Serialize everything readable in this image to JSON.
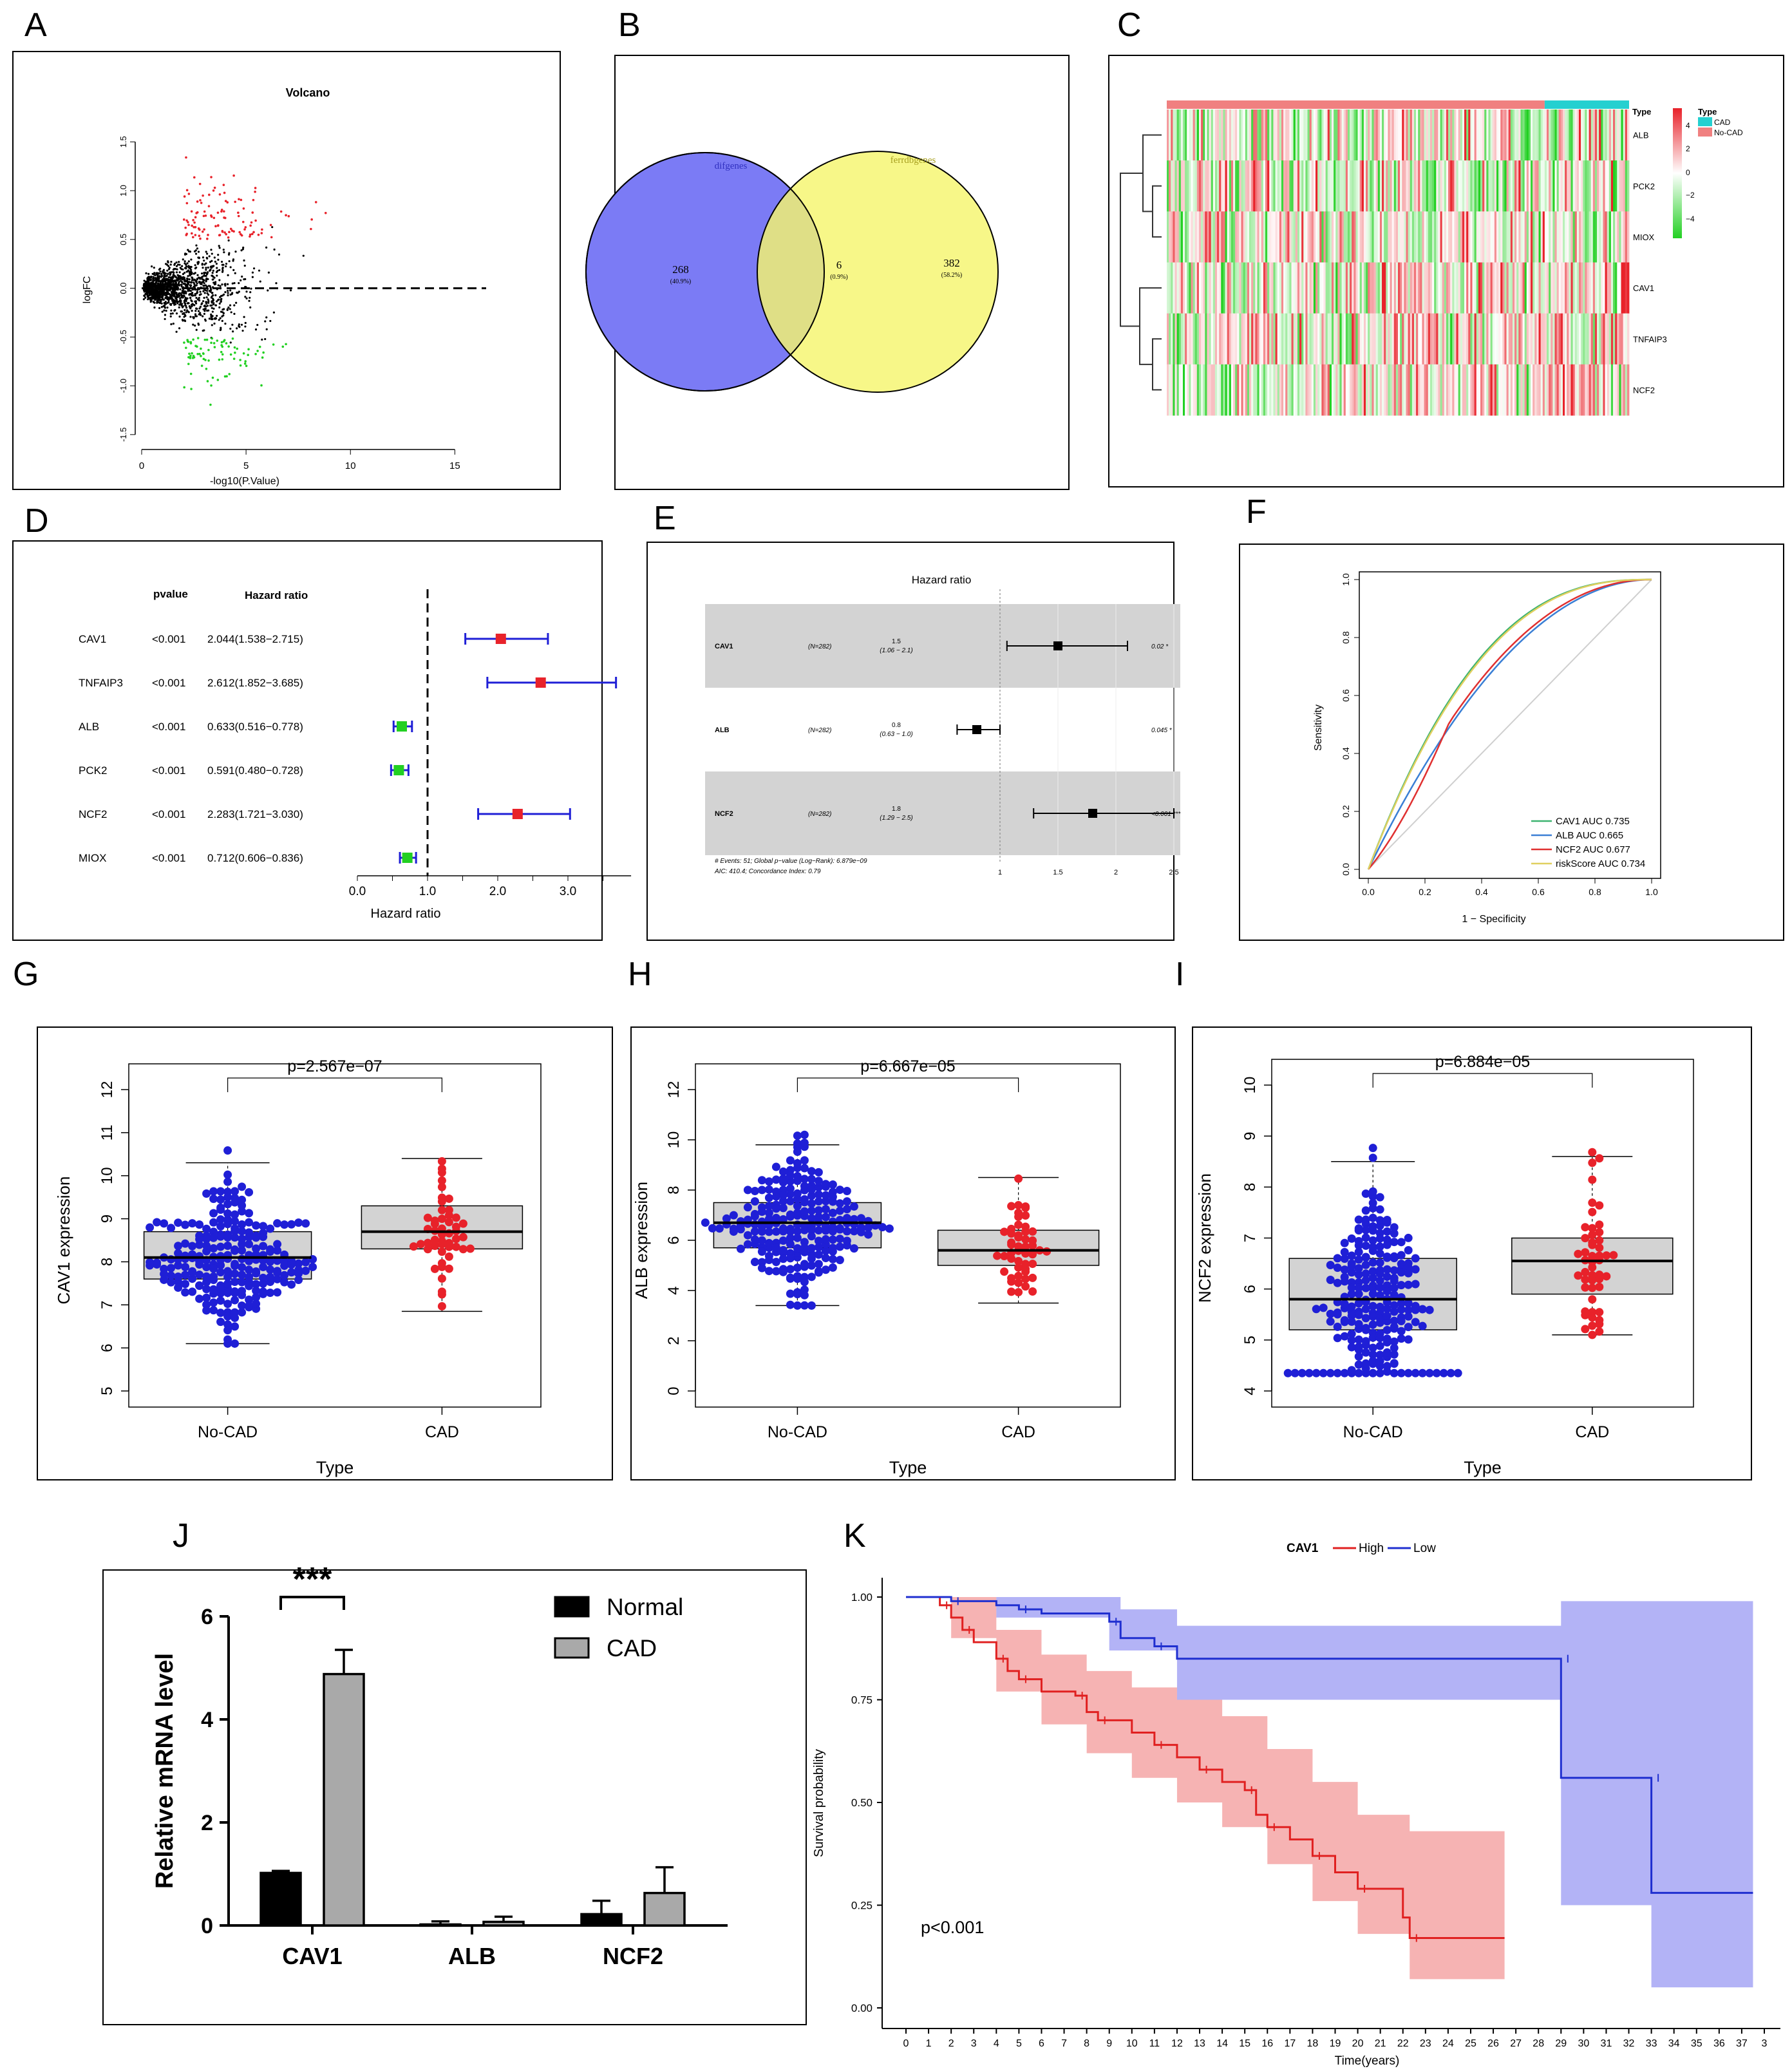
{
  "panels": {
    "A": "A",
    "B": "B",
    "C": "C",
    "D": "D",
    "E": "E",
    "F": "F",
    "G": "G",
    "H": "H",
    "I": "I",
    "J": "J",
    "K": "K"
  },
  "colors": {
    "red": "#e8222a",
    "green": "#22d022",
    "blue": "#1f1fd6",
    "gray": "#c8c8c8",
    "venn_left": "#7b7bf5",
    "venn_right": "#f5f56e",
    "km_high": "#e02020",
    "km_low": "#1f2fd0"
  },
  "chart_data": [
    {
      "id": "A",
      "type": "scatter",
      "title": "Volcano",
      "xlabel": "-log10(P.Value)",
      "ylabel": "logFC",
      "xlim": [
        0,
        16.5
      ],
      "ylim": [
        -1.6,
        1.7
      ],
      "xticks": [
        0,
        5,
        10,
        15
      ],
      "yticks": [
        -1.5,
        -1.0,
        -0.5,
        0.0,
        0.5,
        1.0,
        1.5
      ],
      "threshold_line_y": 0,
      "groups": [
        "up (red)",
        "down (green)",
        "not significant (black)"
      ]
    },
    {
      "id": "B",
      "type": "venn",
      "sets": [
        {
          "name": "difgenes",
          "only": 268,
          "pct": "(40.9%)"
        },
        {
          "name": "ferrdbgenes",
          "only": 382,
          "pct": "(58.2%)"
        }
      ],
      "intersection": {
        "count": 6,
        "pct": "(0.9%)"
      }
    },
    {
      "id": "C",
      "type": "heatmap",
      "rows": [
        "ALB",
        "PCK2",
        "MIOX",
        "CAV1",
        "TNFAIP3",
        "NCF2"
      ],
      "annotation": {
        "title": "Type",
        "levels": [
          "CAD",
          "No-CAD"
        ]
      },
      "scale_title": "Type",
      "scale_ticks": [
        "4",
        "2",
        "0",
        "−2",
        "−4"
      ]
    },
    {
      "id": "D",
      "type": "forest",
      "col_headers": {
        "p": "pvalue",
        "hr": "Hazard ratio"
      },
      "rows": [
        {
          "gene": "CAV1",
          "p": "<0.001",
          "hr_text": "2.044(1.538−2.715)",
          "hr": 2.044,
          "lo": 1.538,
          "hi": 2.715,
          "color": "red"
        },
        {
          "gene": "TNFAIP3",
          "p": "<0.001",
          "hr_text": "2.612(1.852−3.685)",
          "hr": 2.612,
          "lo": 1.852,
          "hi": 3.685,
          "color": "red"
        },
        {
          "gene": "ALB",
          "p": "<0.001",
          "hr_text": "0.633(0.516−0.778)",
          "hr": 0.633,
          "lo": 0.516,
          "hi": 0.778,
          "color": "green"
        },
        {
          "gene": "PCK2",
          "p": "<0.001",
          "hr_text": "0.591(0.480−0.728)",
          "hr": 0.591,
          "lo": 0.48,
          "hi": 0.728,
          "color": "green"
        },
        {
          "gene": "NCF2",
          "p": "<0.001",
          "hr_text": "2.283(1.721−3.030)",
          "hr": 2.283,
          "lo": 1.721,
          "hi": 3.03,
          "color": "red"
        },
        {
          "gene": "MIOX",
          "p": "<0.001",
          "hr_text": "0.712(0.606−0.836)",
          "hr": 0.712,
          "lo": 0.606,
          "hi": 0.836,
          "color": "green"
        }
      ],
      "xticks": [
        "0.0",
        "1.0",
        "2.0",
        "3.0"
      ],
      "xlabel": "Hazard ratio"
    },
    {
      "id": "E",
      "type": "forest",
      "title": "Hazard ratio",
      "rows": [
        {
          "gene": "CAV1",
          "n": "(N=282)",
          "hr": "1.5",
          "ci": "(1.06 − 2.1)",
          "p": "0.02 *",
          "hr_val": 1.5,
          "lo": 1.06,
          "hi": 2.1
        },
        {
          "gene": "ALB",
          "n": "(N=282)",
          "hr": "0.8",
          "ci": "(0.63 − 1.0)",
          "p": "0.045 *",
          "hr_val": 0.8,
          "lo": 0.63,
          "hi": 1.0
        },
        {
          "gene": "NCF2",
          "n": "(N=282)",
          "hr": "1.8",
          "ci": "(1.29 − 2.5)",
          "p": "<0.001 ***",
          "hr_val": 1.8,
          "lo": 1.29,
          "hi": 2.5
        }
      ],
      "footnote1": "# Events: 51; Global p−value (Log−Rank): 6.879e−09",
      "footnote2": "AIC: 410.4; Concordance Index: 0.79",
      "xticks": [
        "1",
        "1.5",
        "2",
        "2.5"
      ]
    },
    {
      "id": "F",
      "type": "line",
      "xlabel": "1 − Specificity",
      "ylabel": "Sensitivity",
      "xlim": [
        0,
        1
      ],
      "ylim": [
        0,
        1
      ],
      "ticks": [
        "0.0",
        "0.2",
        "0.4",
        "0.6",
        "0.8",
        "1.0"
      ],
      "series": [
        {
          "name": "CAV1 AUC 0.735",
          "auc": 0.735,
          "color": "#3cb371"
        },
        {
          "name": "ALB AUC 0.665",
          "auc": 0.665,
          "color": "#3a7fd5"
        },
        {
          "name": "NCF2 AUC 0.677",
          "auc": 0.677,
          "color": "#e03030"
        },
        {
          "name": "riskScore AUC 0.734",
          "auc": 0.734,
          "color": "#e0d060"
        }
      ]
    },
    {
      "id": "G",
      "type": "box",
      "ylabel": "CAV1 expression",
      "xlabel": "Type",
      "pvalue": "p=2.567e−07",
      "categories": [
        "No-CAD",
        "CAD"
      ],
      "ylim": [
        5,
        12
      ],
      "yticks": [
        "5",
        "6",
        "7",
        "8",
        "9",
        "10",
        "11",
        "12"
      ],
      "boxes": [
        {
          "min": 6.1,
          "q1": 7.6,
          "median": 8.1,
          "q3": 8.7,
          "max": 10.3,
          "color": "blue"
        },
        {
          "min": 6.85,
          "q1": 8.3,
          "median": 8.7,
          "q3": 9.3,
          "max": 10.4,
          "color": "red"
        }
      ]
    },
    {
      "id": "H",
      "type": "box",
      "ylabel": "ALB expression",
      "xlabel": "Type",
      "pvalue": "p=6.667e−05",
      "categories": [
        "No-CAD",
        "CAD"
      ],
      "ylim": [
        0,
        12
      ],
      "yticks": [
        "0",
        "2",
        "4",
        "6",
        "8",
        "10",
        "12"
      ],
      "boxes": [
        {
          "min": 3.4,
          "q1": 5.7,
          "median": 6.7,
          "q3": 7.5,
          "max": 9.8,
          "color": "blue"
        },
        {
          "min": 3.5,
          "q1": 5.0,
          "median": 5.6,
          "q3": 6.4,
          "max": 8.5,
          "color": "red"
        }
      ]
    },
    {
      "id": "I",
      "type": "box",
      "ylabel": "NCF2 expression",
      "xlabel": "Type",
      "pvalue": "p=6.884e−05",
      "categories": [
        "No-CAD",
        "CAD"
      ],
      "ylim": [
        4,
        10
      ],
      "yticks": [
        "4",
        "5",
        "6",
        "7",
        "8",
        "9",
        "10"
      ],
      "boxes": [
        {
          "min": 4.35,
          "q1": 5.2,
          "median": 5.8,
          "q3": 6.6,
          "max": 8.5,
          "color": "blue"
        },
        {
          "min": 5.1,
          "q1": 5.9,
          "median": 6.55,
          "q3": 7.0,
          "max": 8.6,
          "color": "red"
        }
      ]
    },
    {
      "id": "J",
      "type": "bar",
      "ylabel": "Relative mRNA level",
      "ylim": [
        0,
        6
      ],
      "yticks": [
        "0",
        "2",
        "4",
        "6"
      ],
      "categories": [
        "CAV1",
        "ALB",
        "NCF2"
      ],
      "series": [
        {
          "name": "Normal",
          "values": [
            1.02,
            0.02,
            0.22
          ],
          "errors": [
            0.04,
            0.06,
            0.26
          ],
          "color": "#000000"
        },
        {
          "name": "CAD",
          "values": [
            4.88,
            0.07,
            0.63
          ],
          "errors": [
            0.47,
            0.1,
            0.5
          ],
          "color": "#a9a9a9"
        }
      ],
      "significance": "***"
    },
    {
      "id": "K",
      "type": "line",
      "legend_title": "CAV1",
      "xlabel": "Time(years)",
      "ylabel": "Survival probability",
      "yticks": [
        "0.00",
        "0.25",
        "0.50",
        "0.75",
        "1.00"
      ],
      "xticks": [
        "0",
        "1",
        "2",
        "3",
        "4",
        "5",
        "6",
        "7",
        "8",
        "9",
        "10",
        "11",
        "12",
        "13",
        "14",
        "15",
        "16",
        "17",
        "18",
        "19",
        "20",
        "21",
        "22",
        "23",
        "24",
        "25",
        "26",
        "27",
        "28",
        "29",
        "30",
        "31",
        "32",
        "33",
        "34",
        "35",
        "36",
        "37",
        "3"
      ],
      "pvalue": "p<0.001",
      "series": [
        {
          "name": "High",
          "color": "#e02020",
          "points": [
            [
              0,
              1
            ],
            [
              1.5,
              0.98
            ],
            [
              2,
              0.95
            ],
            [
              2.5,
              0.92
            ],
            [
              3,
              0.89
            ],
            [
              4,
              0.85
            ],
            [
              4.5,
              0.82
            ],
            [
              5,
              0.8
            ],
            [
              6,
              0.77
            ],
            [
              7.5,
              0.76
            ],
            [
              8,
              0.72
            ],
            [
              8.5,
              0.7
            ],
            [
              10,
              0.67
            ],
            [
              11,
              0.64
            ],
            [
              12,
              0.61
            ],
            [
              13,
              0.58
            ],
            [
              14,
              0.55
            ],
            [
              15,
              0.53
            ],
            [
              15.5,
              0.47
            ],
            [
              16,
              0.44
            ],
            [
              17,
              0.41
            ],
            [
              18,
              0.37
            ],
            [
              19,
              0.33
            ],
            [
              20,
              0.29
            ],
            [
              22,
              0.22
            ],
            [
              22.3,
              0.17
            ],
            [
              26.5,
              0.17
            ]
          ]
        },
        {
          "name": "Low",
          "color": "#1f2fd0",
          "points": [
            [
              0,
              1
            ],
            [
              2,
              0.99
            ],
            [
              4,
              0.98
            ],
            [
              5,
              0.97
            ],
            [
              6,
              0.96
            ],
            [
              9,
              0.94
            ],
            [
              9.5,
              0.9
            ],
            [
              11,
              0.88
            ],
            [
              12,
              0.85
            ],
            [
              29,
              0.85
            ],
            [
              29,
              0.56
            ],
            [
              33,
              0.56
            ],
            [
              33,
              0.28
            ],
            [
              37.5,
              0.28
            ]
          ]
        }
      ]
    }
  ]
}
